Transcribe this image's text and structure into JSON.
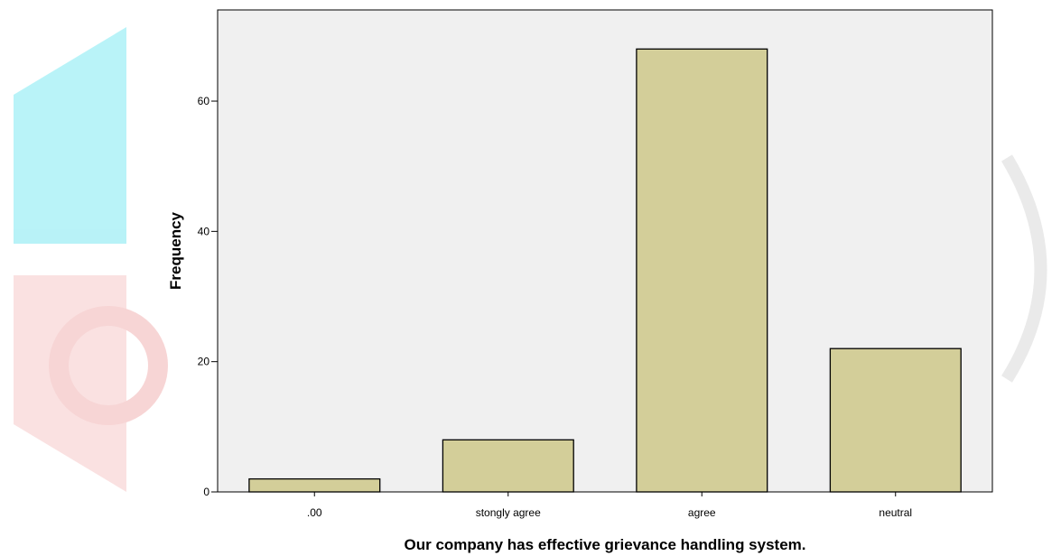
{
  "chart_data": {
    "type": "bar",
    "categories": [
      ".00",
      "stongly agree",
      "agree",
      "neutral"
    ],
    "values": [
      2,
      8,
      68,
      22
    ],
    "xlabel": "Our company has effective grievance handling system.",
    "ylabel": "Frequency",
    "ylim": [
      0,
      74
    ],
    "yticks": [
      0,
      20,
      40,
      60
    ],
    "grid": false,
    "colors": {
      "bar_fill": "#d3ce99",
      "plot_background": "#f0f0f0",
      "axis": "#000000"
    }
  },
  "watermark": {
    "colors": {
      "cyan": "#7fe9f2",
      "red": "#f6c9c9",
      "gray": "#d9d9d9"
    }
  }
}
